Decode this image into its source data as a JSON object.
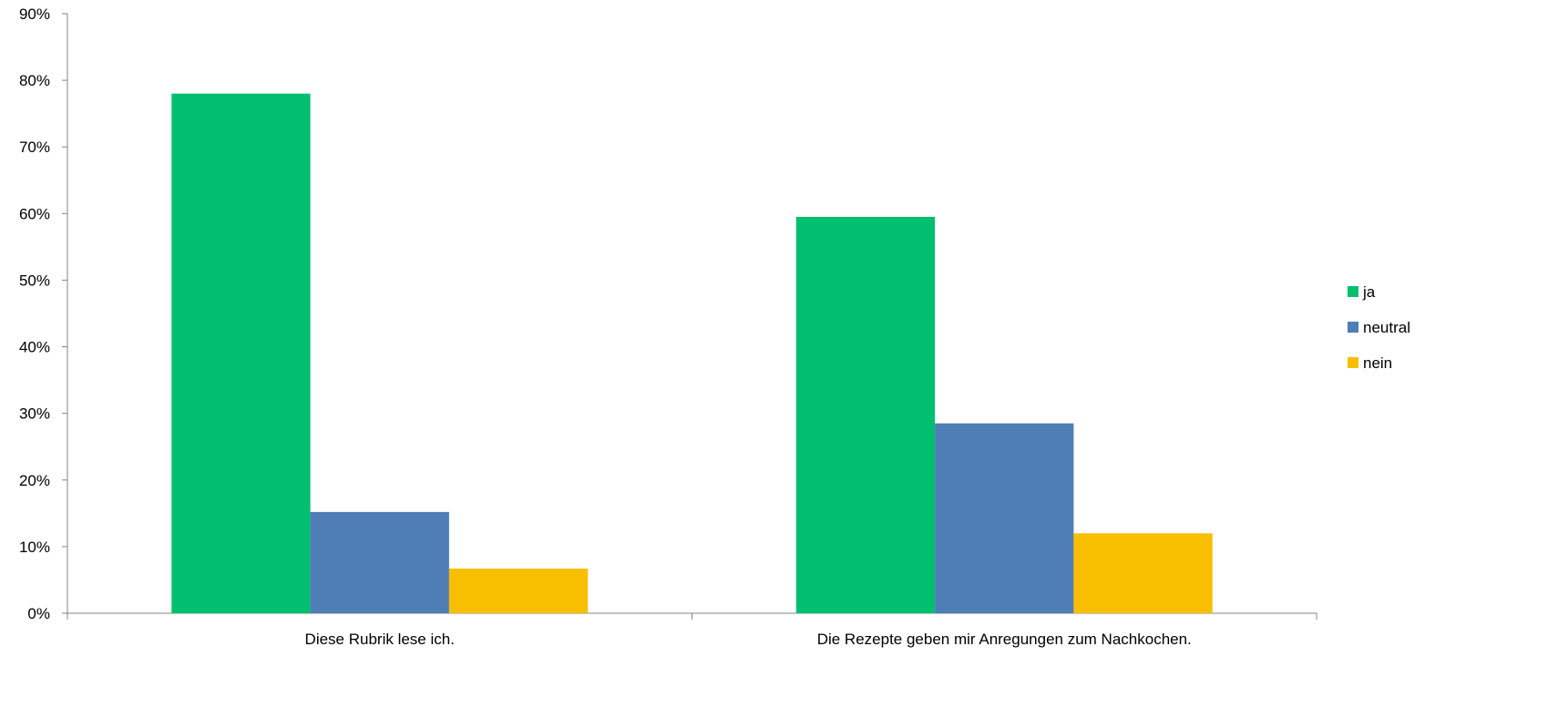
{
  "chart_data": {
    "type": "bar",
    "title": "",
    "xlabel": "",
    "ylabel": "",
    "categories": [
      "Diese Rubrik lese ich.",
      "Die Rezepte geben mir Anregungen zum Nachkochen."
    ],
    "series": [
      {
        "name": "ja",
        "color": "#00BF6F",
        "values": [
          78,
          59.5
        ]
      },
      {
        "name": "neutral",
        "color": "#4F7DB5",
        "values": [
          15.2,
          28.5
        ]
      },
      {
        "name": "nein",
        "color": "#F8BF00",
        "values": [
          6.7,
          12
        ]
      }
    ],
    "ylim": [
      0,
      90
    ],
    "yticks": [
      0,
      10,
      20,
      30,
      40,
      50,
      60,
      70,
      80,
      90
    ],
    "ytick_labels": [
      "0%",
      "10%",
      "20%",
      "30%",
      "40%",
      "50%",
      "60%",
      "70%",
      "80%",
      "90%"
    ],
    "grid": false,
    "legend_position": "right"
  }
}
